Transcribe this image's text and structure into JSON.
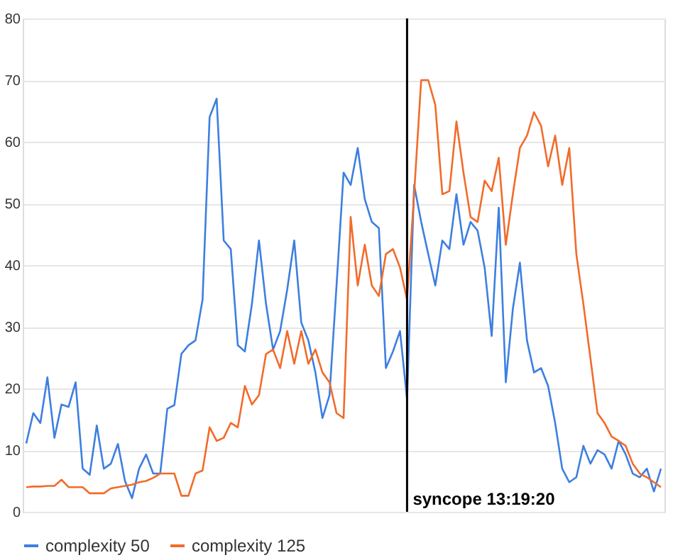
{
  "chart_data": {
    "type": "line",
    "tick_labels": "y",
    "grid": "y",
    "legend": "bottom",
    "line_style": "solid",
    "marker": "none",
    "categories": [
      null,
      null,
      null,
      null,
      null,
      null,
      null,
      null,
      null,
      null,
      null,
      null,
      null,
      null,
      null,
      null,
      null,
      null,
      null,
      null,
      null,
      null,
      null,
      null,
      null,
      null,
      null,
      null,
      null,
      null,
      null,
      null,
      null,
      null,
      null,
      null,
      null,
      null,
      null,
      null,
      null,
      null,
      null,
      null,
      null,
      null,
      null,
      null,
      null,
      null,
      null,
      null,
      null,
      null,
      null,
      null,
      null,
      null,
      null,
      null,
      null,
      null,
      null,
      null,
      null,
      null,
      null,
      null,
      null,
      null,
      null,
      null,
      null,
      null,
      null,
      null,
      null,
      null,
      null,
      null,
      null,
      null,
      null,
      null,
      null,
      null,
      null,
      null,
      null,
      null,
      null
    ],
    "ylim": [
      0,
      80
    ],
    "yticks": [
      0,
      10,
      20,
      30,
      40,
      50,
      60,
      70,
      80
    ],
    "annotations": [
      "syncope 13:19:20"
    ],
    "series": [
      {
        "name": "complexity 50",
        "color": "#3d7fe0",
        "values": [
          11.1,
          16,
          14.4,
          21.8,
          12,
          17.4,
          17,
          21,
          7,
          6,
          14,
          7,
          7.8,
          11,
          5,
          2.2,
          7,
          9.3,
          6.2,
          6.2,
          16.7,
          17.3,
          25.6,
          27,
          27.8,
          34.4,
          64,
          67,
          44,
          42.6,
          27,
          26,
          33.7,
          44,
          33.7,
          26.3,
          29.3,
          36,
          44,
          30.7,
          27.8,
          22.6,
          15.2,
          18.9,
          36.7,
          55,
          53,
          59,
          50.7,
          47,
          46,
          23.3,
          26,
          29.3,
          18.2,
          53,
          47,
          41.8,
          36.7,
          44,
          42.6,
          51.5,
          43.3,
          47,
          45.6,
          39.6,
          28.5,
          49.3,
          21,
          32.9,
          40.4,
          27.8,
          22.6,
          23.3,
          20.4,
          14.4,
          7,
          4.8,
          5.6,
          10.7,
          7.8,
          10,
          9.3,
          7,
          11.5,
          9.3,
          6.2,
          5.6,
          7,
          3.3,
          7
        ]
      },
      {
        "name": "complexity 125",
        "color": "#f26b2a",
        "values": [
          4,
          4.1,
          4.1,
          4.2,
          4.2,
          5.2,
          4,
          4,
          4,
          3,
          3,
          3,
          3.8,
          4,
          4.2,
          4.4,
          4.8,
          5,
          5.5,
          6.2,
          6.2,
          6.2,
          2.6,
          2.6,
          6.2,
          6.7,
          13.7,
          11.5,
          12,
          14.4,
          13.7,
          20.4,
          17.4,
          18.9,
          25.6,
          26.3,
          23.3,
          29.3,
          24,
          29.3,
          24,
          26.3,
          22.6,
          21,
          16,
          15.2,
          47.8,
          36.7,
          43.3,
          36.7,
          35,
          41.8,
          42.6,
          39.6,
          34.4,
          51.5,
          70,
          70,
          66,
          51.5,
          52,
          63.3,
          55,
          47.8,
          47,
          53.7,
          52,
          57.4,
          43.3,
          51.5,
          59,
          61,
          64.8,
          62.6,
          56,
          61,
          53,
          59,
          41.8,
          33.7,
          24.9,
          16,
          14.4,
          12.2,
          11.5,
          10.7,
          7.8,
          6.2,
          5.6,
          4.8,
          4
        ]
      }
    ]
  }
}
